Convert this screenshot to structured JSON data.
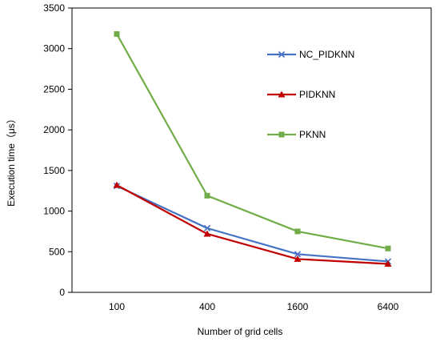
{
  "chart_data": {
    "type": "line",
    "categories": [
      "100",
      "400",
      "1600",
      "6400"
    ],
    "xlabel": "Number of grid cells",
    "ylabel": "Execution time（μs）",
    "ylim": [
      0,
      3500
    ],
    "yticks": [
      0,
      500,
      1000,
      1500,
      2000,
      2500,
      3000,
      3500
    ],
    "grid": false,
    "legend_position": "right",
    "series": [
      {
        "name": "NC_PIDKNN",
        "values": [
          1310,
          790,
          470,
          380
        ],
        "color": "#4472C4",
        "marker": "x"
      },
      {
        "name": "PIDKNN",
        "values": [
          1320,
          720,
          410,
          350
        ],
        "color": "#C00000",
        "marker": "triangle"
      },
      {
        "name": "PKNN",
        "values": [
          3180,
          1190,
          750,
          540
        ],
        "color": "#70AD47",
        "marker": "square"
      }
    ]
  }
}
